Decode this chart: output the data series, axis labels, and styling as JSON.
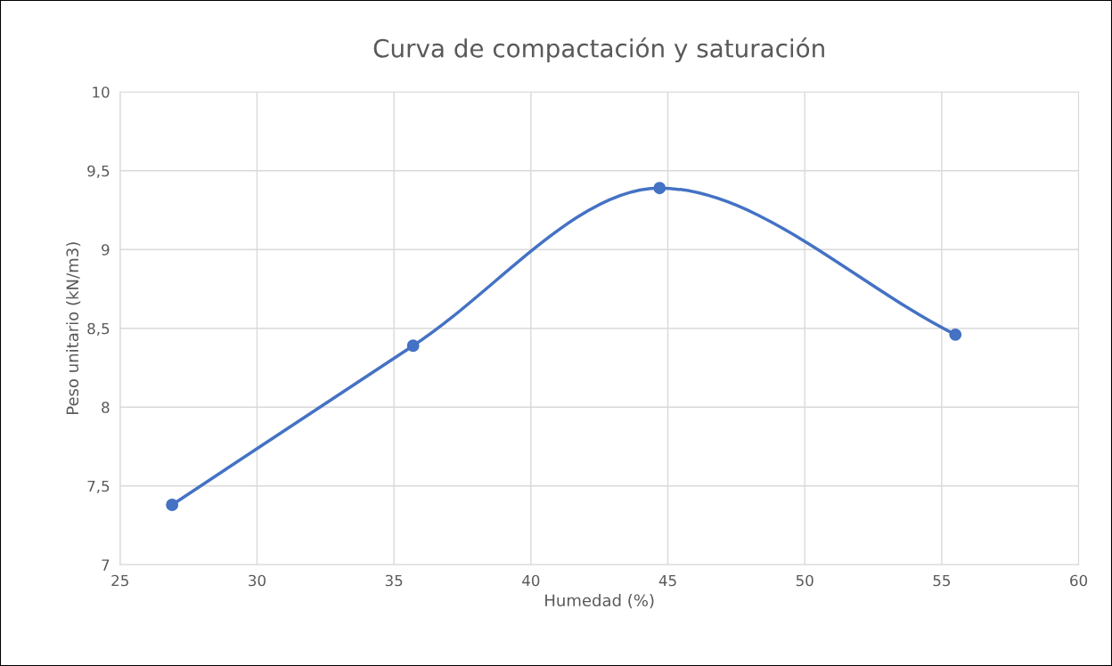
{
  "chart_data": {
    "type": "line",
    "title": "Curva de compactación y saturación",
    "xlabel": "Humedad (%)",
    "ylabel": "Peso unitario (kN/m3)",
    "x": [
      26.9,
      35.7,
      44.7,
      55.5
    ],
    "series": [
      {
        "color": "#4472c4",
        "values": [
          7.38,
          8.39,
          9.39,
          8.46
        ]
      }
    ],
    "xlim": [
      25,
      60
    ],
    "xticks": [
      25,
      30,
      35,
      40,
      45,
      50,
      55,
      60
    ],
    "ylim": [
      7,
      10
    ],
    "yticks": [
      7,
      {
        "value": 7.5,
        "label": "7,5"
      },
      8,
      {
        "value": 8.5,
        "label": "8,5"
      },
      9,
      {
        "value": 9.5,
        "label": "9,5"
      },
      10
    ],
    "grid": true,
    "marker": "circle",
    "line_style": "solid"
  }
}
